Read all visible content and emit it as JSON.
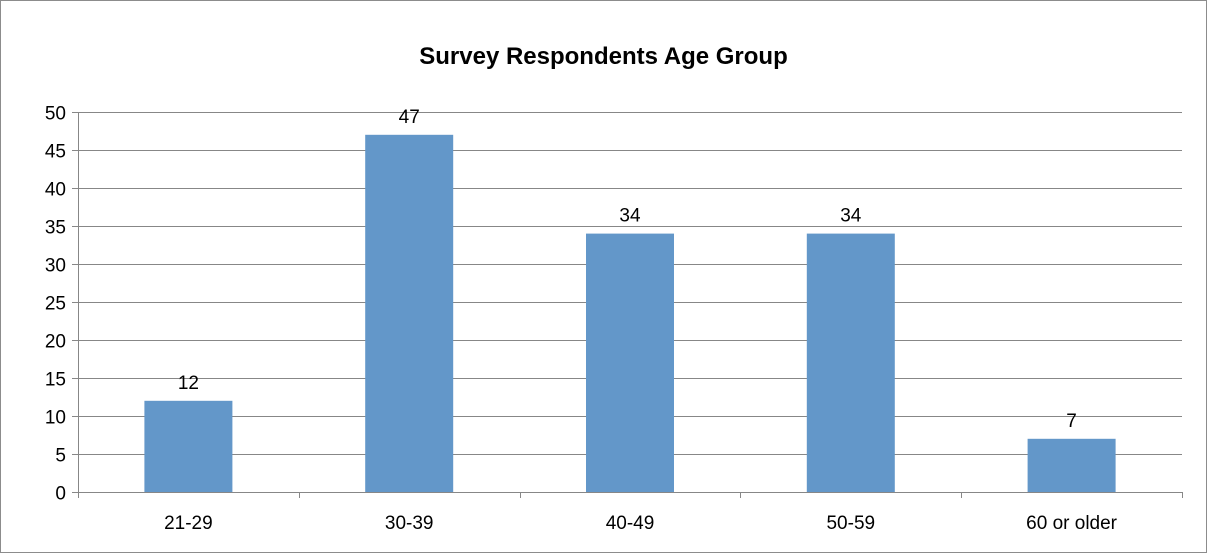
{
  "chart_data": {
    "type": "bar",
    "title": "Survey Respondents Age Group",
    "xlabel": "",
    "ylabel": "",
    "categories": [
      "21-29",
      "30-39",
      "40-49",
      "50-59",
      "60 or older"
    ],
    "values": [
      12,
      47,
      34,
      34,
      7
    ],
    "ylim": [
      0,
      50
    ],
    "yticks": [
      0,
      5,
      10,
      15,
      20,
      25,
      30,
      35,
      40,
      45,
      50
    ],
    "grid": true,
    "legend": "none",
    "colors": {
      "bar": "#6397c9",
      "grid": "#878787",
      "axis": "#878787"
    }
  }
}
